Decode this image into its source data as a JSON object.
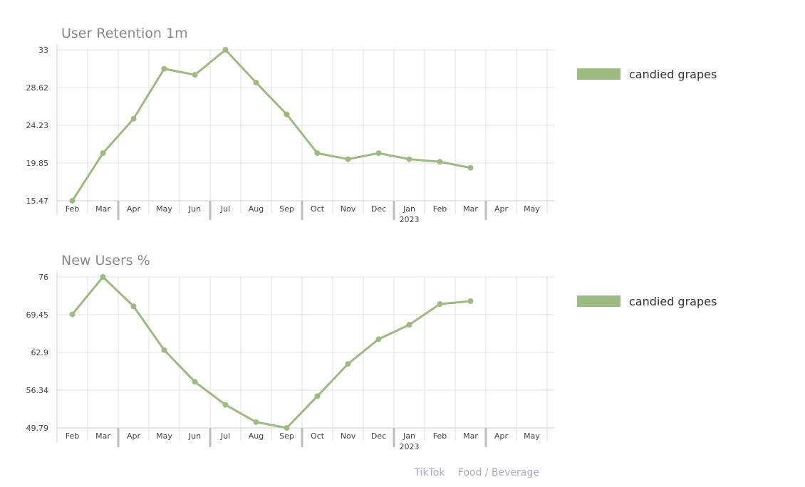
{
  "chart_data": [
    {
      "type": "line",
      "title": "User Retention 1m",
      "x": [
        "Feb",
        "Mar",
        "Apr",
        "May",
        "Jun",
        "Jul",
        "Aug",
        "Sep",
        "Oct",
        "Nov",
        "Dec",
        "Jan",
        "Feb",
        "Mar",
        "Apr",
        "May"
      ],
      "year_labels": {
        "11": "2023"
      },
      "ylim": [
        15.47,
        33
      ],
      "yticks": [
        "15.47",
        "19.85",
        "24.23",
        "28.62",
        "33"
      ],
      "grid": true,
      "legend_position": "right",
      "series": [
        {
          "name": "candied grapes",
          "color": "#9dba82",
          "values": [
            15.47,
            21.0,
            25.0,
            30.8,
            30.1,
            33.0,
            29.2,
            25.5,
            21.0,
            20.3,
            21.0,
            20.3,
            20.0,
            19.3,
            null,
            null
          ]
        }
      ]
    },
    {
      "type": "line",
      "title": "New Users %",
      "x": [
        "Feb",
        "Mar",
        "Apr",
        "May",
        "Jun",
        "Jul",
        "Aug",
        "Sep",
        "Oct",
        "Nov",
        "Dec",
        "Jan",
        "Feb",
        "Mar",
        "Apr",
        "May"
      ],
      "year_labels": {
        "11": "2023"
      },
      "ylim": [
        49.79,
        76
      ],
      "yticks": [
        "49.79",
        "56.34",
        "62.9",
        "69.45",
        "76"
      ],
      "grid": true,
      "legend_position": "right",
      "series": [
        {
          "name": "candied grapes",
          "color": "#9dba82",
          "values": [
            69.5,
            76.0,
            70.9,
            63.3,
            57.8,
            53.8,
            50.8,
            49.79,
            55.3,
            60.9,
            65.2,
            67.7,
            71.3,
            71.8,
            null,
            null
          ]
        }
      ]
    }
  ],
  "footer": {
    "source": "TikTok",
    "category": "Food / Beverage"
  }
}
